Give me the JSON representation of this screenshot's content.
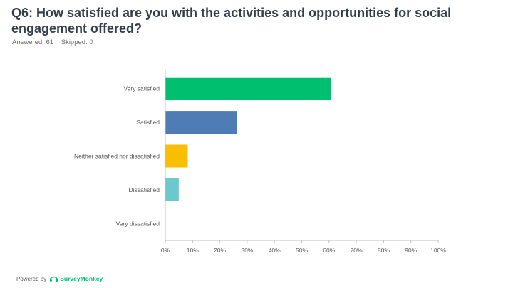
{
  "header": {
    "title": "Q6: How satisfied are you with the activities and opportunities for social engagement offered?",
    "answered": "Answered: 61",
    "skipped": "Skipped: 0"
  },
  "footer": {
    "powered_by": "Powered by",
    "brand": "SurveyMonkey",
    "brand_color": "#00bf6f",
    "logo_icon": "surveymonkey-logo-icon"
  },
  "chart_data": {
    "type": "bar",
    "orientation": "horizontal",
    "categories": [
      "Very satisfied",
      "Satisfied",
      "Neither satisfied nor dissatisfied",
      "Dissatisfied",
      "Very dissatisfied"
    ],
    "values": [
      60.66,
      26.23,
      8.2,
      4.92,
      0
    ],
    "colors": [
      "#00bf6f",
      "#507cb6",
      "#f9be00",
      "#6bc8cd",
      "#a0a0a0"
    ],
    "xlim": [
      0,
      100
    ],
    "x_ticks": [
      0,
      10,
      20,
      30,
      40,
      50,
      60,
      70,
      80,
      90,
      100
    ],
    "x_tick_labels": [
      "0%",
      "10%",
      "20%",
      "30%",
      "40%",
      "50%",
      "60%",
      "70%",
      "80%",
      "90%",
      "100%"
    ],
    "grid": false,
    "legend": "none"
  }
}
